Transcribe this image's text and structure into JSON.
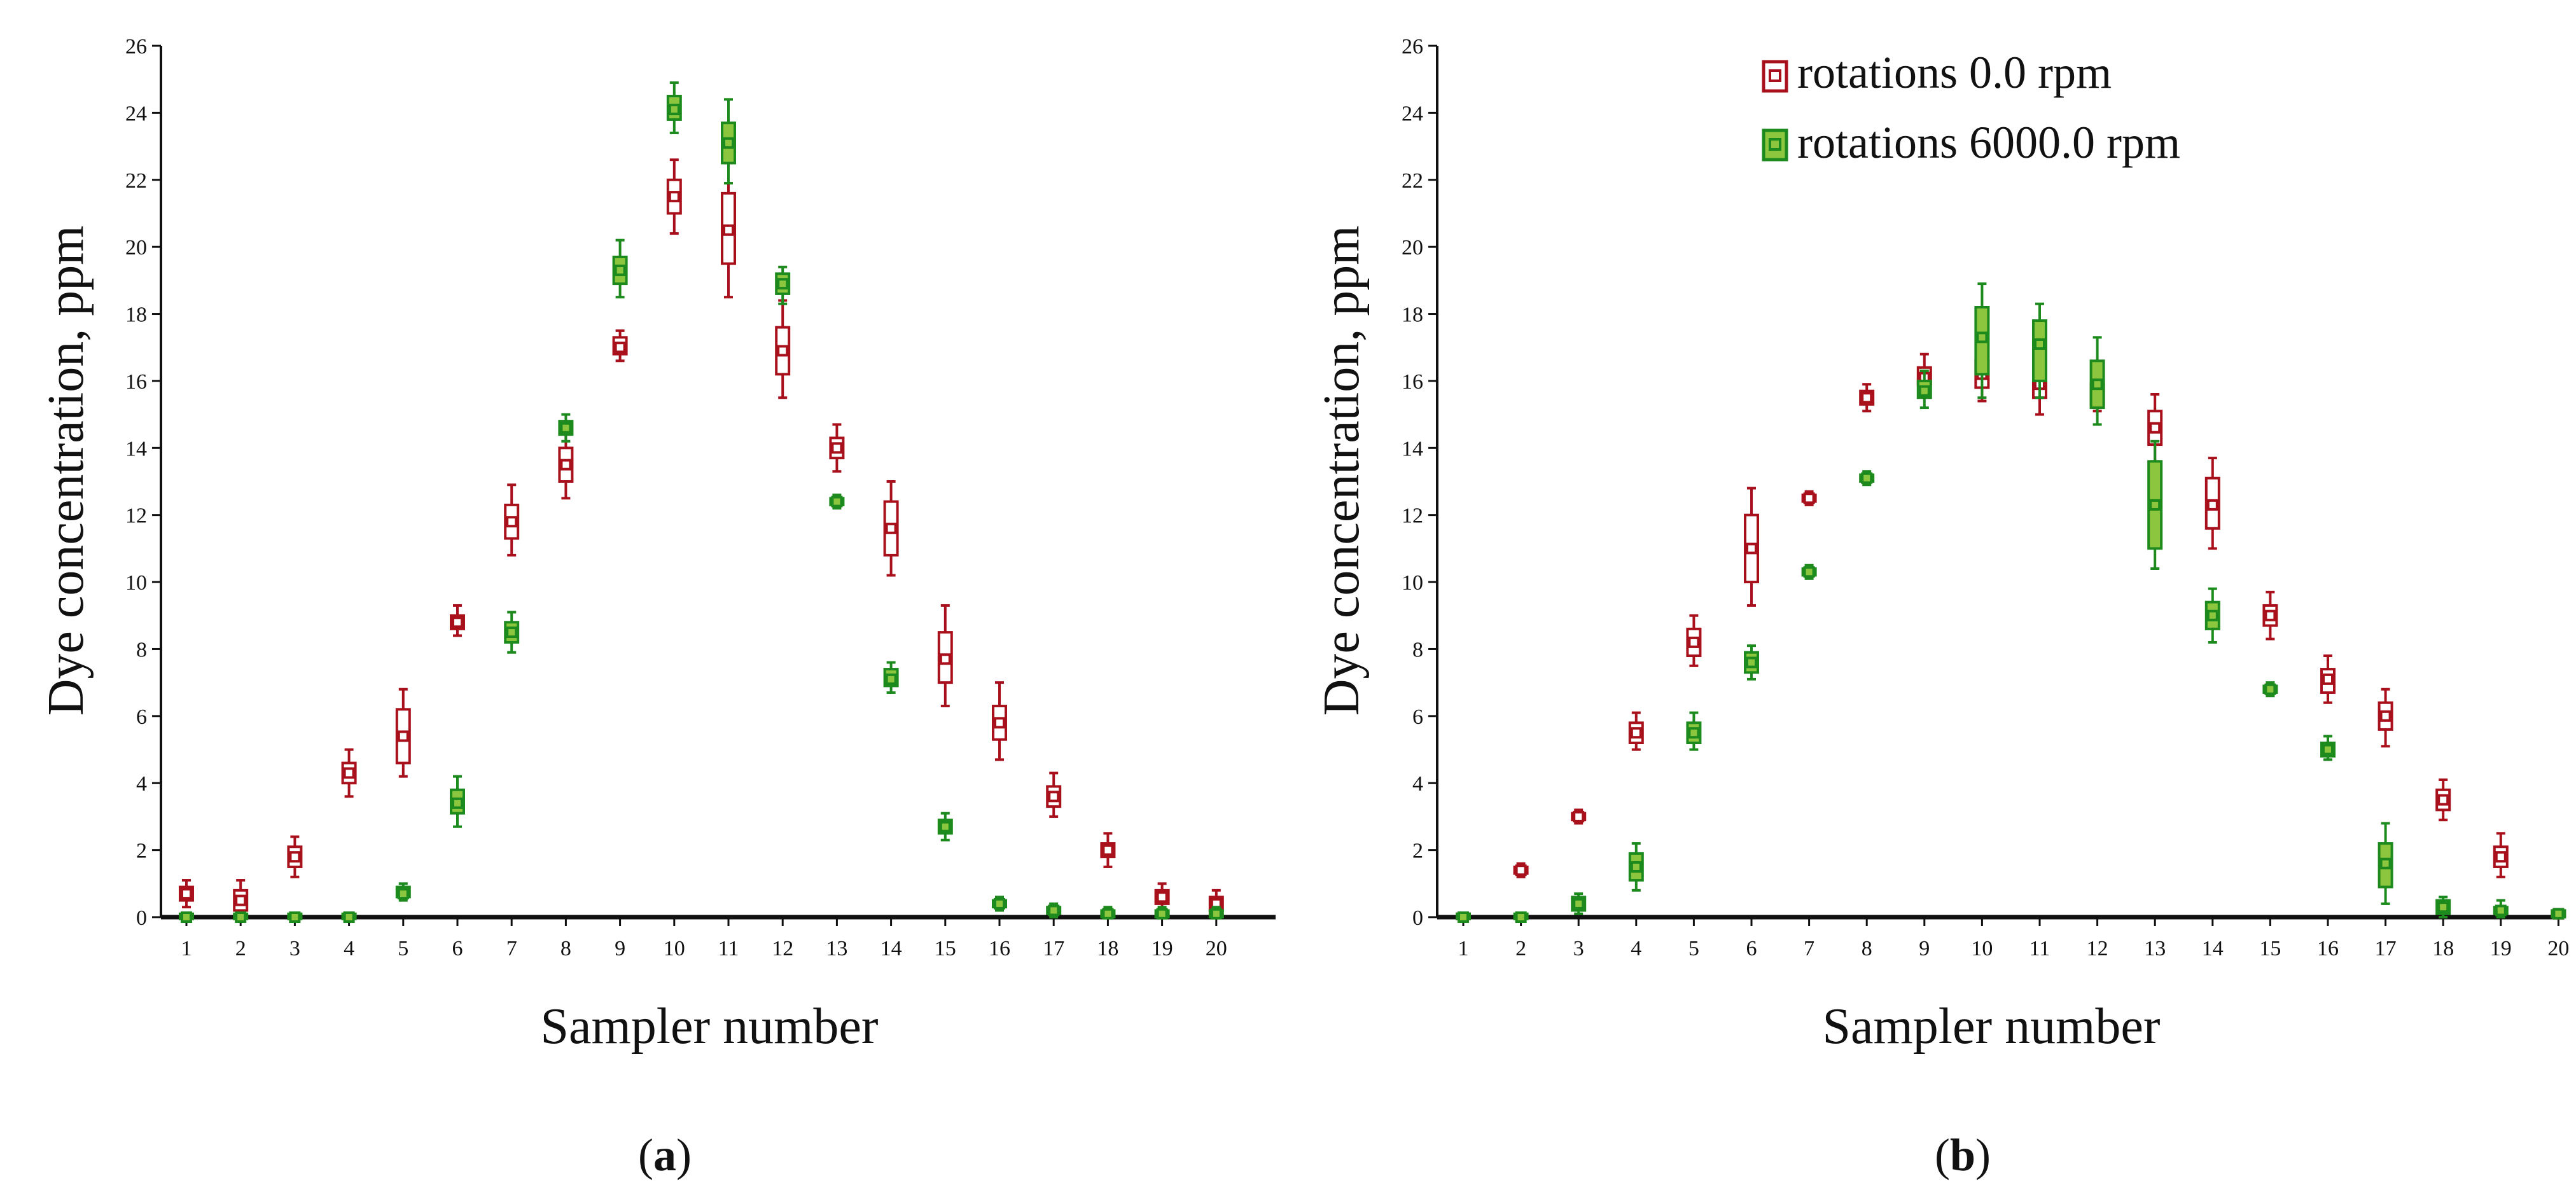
{
  "colors": {
    "series_0rpm": "#a8101c",
    "series_0rpm_fill": "#ffffff",
    "series_6000rpm": "#1d8a1d",
    "series_6000rpm_fill": "#8cc63f",
    "axis": "#111111"
  },
  "panel_labels": [
    {
      "open": "(",
      "letter": "a",
      "close": ")"
    },
    {
      "open": "(",
      "letter": "b",
      "close": ")"
    }
  ],
  "legend": {
    "entries": [
      {
        "label": "rotations 0.0 rpm",
        "series": "0rpm"
      },
      {
        "label": "rotations 6000.0 rpm",
        "series": "6000rpm"
      }
    ]
  },
  "chart_data": [
    {
      "type": "boxplot",
      "title": "",
      "xlabel": "Sampler number",
      "ylabel": "Dye concentration, ppm",
      "ylim": [
        0,
        26
      ],
      "yticks": [
        0,
        2,
        4,
        6,
        8,
        10,
        12,
        14,
        16,
        18,
        20,
        22,
        24,
        26
      ],
      "categories": [
        1,
        2,
        3,
        4,
        5,
        6,
        7,
        8,
        9,
        10,
        11,
        12,
        13,
        14,
        15,
        16,
        17,
        18,
        19,
        20
      ],
      "series": [
        {
          "name": "rotations 0.0 rpm",
          "median": [
            0.7,
            0.5,
            1.8,
            4.3,
            5.4,
            8.8,
            11.8,
            13.5,
            17.0,
            21.5,
            20.5,
            16.9,
            14.0,
            11.6,
            7.7,
            5.8,
            3.6,
            2.0,
            0.6,
            0.4
          ],
          "q1": [
            0.5,
            0.2,
            1.5,
            4.0,
            4.6,
            8.6,
            11.3,
            13.0,
            16.8,
            21.0,
            19.5,
            16.2,
            13.7,
            10.8,
            7.0,
            5.3,
            3.3,
            1.8,
            0.4,
            0.2
          ],
          "q3": [
            0.9,
            0.8,
            2.1,
            4.6,
            6.2,
            9.0,
            12.3,
            14.0,
            17.3,
            22.0,
            21.6,
            17.6,
            14.3,
            12.4,
            8.5,
            6.3,
            3.9,
            2.2,
            0.8,
            0.6
          ],
          "min": [
            0.3,
            0.0,
            1.2,
            3.6,
            4.2,
            8.4,
            10.8,
            12.5,
            16.6,
            20.4,
            18.5,
            15.5,
            13.3,
            10.2,
            6.3,
            4.7,
            3.0,
            1.5,
            0.2,
            0.0
          ],
          "max": [
            1.1,
            1.1,
            2.4,
            5.0,
            6.8,
            9.3,
            12.9,
            14.5,
            17.5,
            22.6,
            22.5,
            18.4,
            14.7,
            13.0,
            9.3,
            7.0,
            4.3,
            2.5,
            1.0,
            0.8
          ]
        },
        {
          "name": "rotations 6000.0 rpm",
          "median": [
            0.0,
            0.0,
            0.0,
            0.0,
            0.7,
            3.4,
            8.5,
            14.6,
            19.3,
            24.1,
            23.1,
            18.9,
            12.4,
            7.1,
            2.7,
            0.4,
            0.2,
            0.1,
            0.1,
            0.1
          ],
          "q1": [
            0.0,
            0.0,
            0.0,
            0.0,
            0.6,
            3.1,
            8.2,
            14.4,
            18.9,
            23.8,
            22.5,
            18.6,
            12.3,
            6.9,
            2.5,
            0.3,
            0.1,
            0.0,
            0.0,
            0.0
          ],
          "q3": [
            0.1,
            0.1,
            0.1,
            0.1,
            0.9,
            3.8,
            8.8,
            14.8,
            19.7,
            24.5,
            23.7,
            19.2,
            12.5,
            7.4,
            2.9,
            0.5,
            0.3,
            0.2,
            0.2,
            0.2
          ],
          "min": [
            0.0,
            0.0,
            0.0,
            0.0,
            0.5,
            2.7,
            7.9,
            14.2,
            18.5,
            23.4,
            21.9,
            18.3,
            12.2,
            6.7,
            2.3,
            0.2,
            0.0,
            0.0,
            0.0,
            0.0
          ],
          "max": [
            0.1,
            0.1,
            0.1,
            0.1,
            1.0,
            4.2,
            9.1,
            15.0,
            20.2,
            24.9,
            24.4,
            19.4,
            12.6,
            7.6,
            3.1,
            0.6,
            0.4,
            0.3,
            0.3,
            0.3
          ]
        }
      ]
    },
    {
      "type": "boxplot",
      "title": "",
      "xlabel": "Sampler number",
      "ylabel": "Dye concentration, ppm",
      "ylim": [
        0,
        26
      ],
      "yticks": [
        0,
        2,
        4,
        6,
        8,
        10,
        12,
        14,
        16,
        18,
        20,
        22,
        24,
        26
      ],
      "categories": [
        1,
        2,
        3,
        4,
        5,
        6,
        7,
        8,
        9,
        10,
        11,
        12,
        13,
        14,
        15,
        16,
        17,
        18,
        19,
        20
      ],
      "legend_position": "top-right",
      "series": [
        {
          "name": "rotations 0.0 rpm",
          "median": [
            0.0,
            1.4,
            3.0,
            5.5,
            8.2,
            11.0,
            12.5,
            15.5,
            16.1,
            16.2,
            15.9,
            15.6,
            14.6,
            12.3,
            9.0,
            7.1,
            6.0,
            3.5,
            1.8,
            0.1
          ],
          "q1": [
            0.0,
            1.3,
            2.9,
            5.2,
            7.8,
            10.0,
            12.4,
            15.3,
            15.9,
            15.8,
            15.5,
            15.3,
            14.1,
            11.6,
            8.7,
            6.7,
            5.6,
            3.2,
            1.5,
            0.0
          ],
          "q3": [
            0.1,
            1.5,
            3.1,
            5.8,
            8.6,
            12.0,
            12.6,
            15.7,
            16.4,
            16.6,
            16.4,
            15.9,
            15.1,
            13.1,
            9.3,
            7.4,
            6.4,
            3.8,
            2.1,
            0.2
          ],
          "min": [
            0.0,
            1.2,
            2.8,
            5.0,
            7.5,
            9.3,
            12.3,
            15.1,
            15.7,
            15.4,
            15.0,
            15.1,
            13.6,
            11.0,
            8.3,
            6.4,
            5.1,
            2.9,
            1.2,
            0.0
          ],
          "max": [
            0.1,
            1.6,
            3.2,
            6.1,
            9.0,
            12.8,
            12.7,
            15.9,
            16.8,
            17.0,
            16.8,
            16.2,
            15.6,
            13.7,
            9.7,
            7.8,
            6.8,
            4.1,
            2.5,
            0.2
          ]
        },
        {
          "name": "rotations 6000.0 rpm",
          "median": [
            0.0,
            0.0,
            0.4,
            1.5,
            5.5,
            7.6,
            10.3,
            13.1,
            15.7,
            17.3,
            17.1,
            15.9,
            12.3,
            9.0,
            6.8,
            5.0,
            1.6,
            0.3,
            0.2,
            0.1
          ],
          "q1": [
            0.0,
            0.0,
            0.2,
            1.1,
            5.2,
            7.3,
            10.2,
            13.0,
            15.5,
            16.2,
            16.0,
            15.2,
            11.0,
            8.6,
            6.7,
            4.8,
            0.9,
            0.1,
            0.1,
            0.0
          ],
          "q3": [
            0.1,
            0.1,
            0.6,
            1.9,
            5.8,
            7.9,
            10.4,
            13.2,
            16.0,
            18.2,
            17.8,
            16.6,
            13.6,
            9.4,
            6.9,
            5.2,
            2.2,
            0.5,
            0.3,
            0.2
          ],
          "min": [
            0.0,
            0.0,
            0.1,
            0.8,
            5.0,
            7.1,
            10.1,
            12.9,
            15.2,
            15.5,
            15.5,
            14.7,
            10.4,
            8.2,
            6.6,
            4.7,
            0.4,
            0.0,
            0.0,
            0.0
          ],
          "max": [
            0.1,
            0.1,
            0.7,
            2.2,
            6.1,
            8.1,
            10.5,
            13.3,
            16.3,
            18.9,
            18.3,
            17.3,
            14.2,
            9.8,
            7.0,
            5.4,
            2.8,
            0.6,
            0.5,
            0.2
          ]
        }
      ]
    }
  ]
}
